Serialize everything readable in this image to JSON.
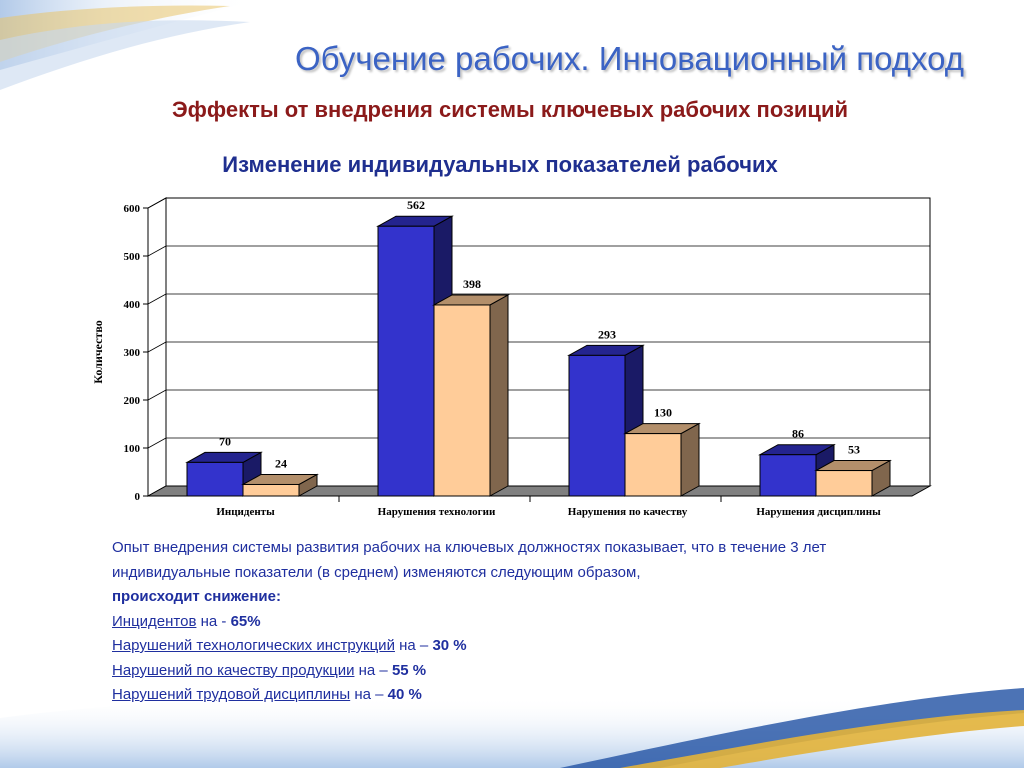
{
  "slide": {
    "title": "Обучение рабочих. Инновационный подход",
    "subtitle": "Эффекты от внедрения системы ключевых рабочих позиций",
    "chart_heading": "Изменение индивидуальных показателей рабочих"
  },
  "chart_data": {
    "type": "bar",
    "title": "",
    "xlabel": "",
    "ylabel": "Количество",
    "ylim": [
      0,
      600
    ],
    "yticks": [
      "0",
      "100",
      "200",
      "300",
      "400",
      "500",
      "600"
    ],
    "categories": [
      "Инциденты",
      "Нарушения технологии",
      "Нарушения по качеству",
      "Нарушения дисциплины"
    ],
    "series": [
      {
        "values": [
          70,
          562,
          293,
          86
        ],
        "color": "#3333cc"
      },
      {
        "values": [
          24,
          398,
          130,
          53
        ],
        "color": "#ffcc99"
      }
    ],
    "grid": true,
    "legend": "none",
    "style": "3d"
  },
  "body": {
    "intro": "Опыт внедрения системы развития рабочих на ключевых должностях показывает, что в течение 3 лет индивидуальные показатели (в среднем) изменяются следующим образом,",
    "emphasis": "происходит снижение:",
    "items": [
      {
        "name": "Инцидентов",
        "sep": " на - ",
        "value": "65%"
      },
      {
        "name": "Нарушений технологических инструкций",
        "sep": " на – ",
        "value": "30 %"
      },
      {
        "name": "Нарушений по качеству продукции",
        "sep": " на – ",
        "value": "55 %"
      },
      {
        "name": "Нарушений трудовой дисциплины",
        "sep": " на – ",
        "value": "40 %"
      }
    ]
  },
  "colors": {
    "title": "#3b63c4",
    "subtitle": "#8b1a1a",
    "heading": "#1f2f8f",
    "text": "#1f2f9f"
  }
}
